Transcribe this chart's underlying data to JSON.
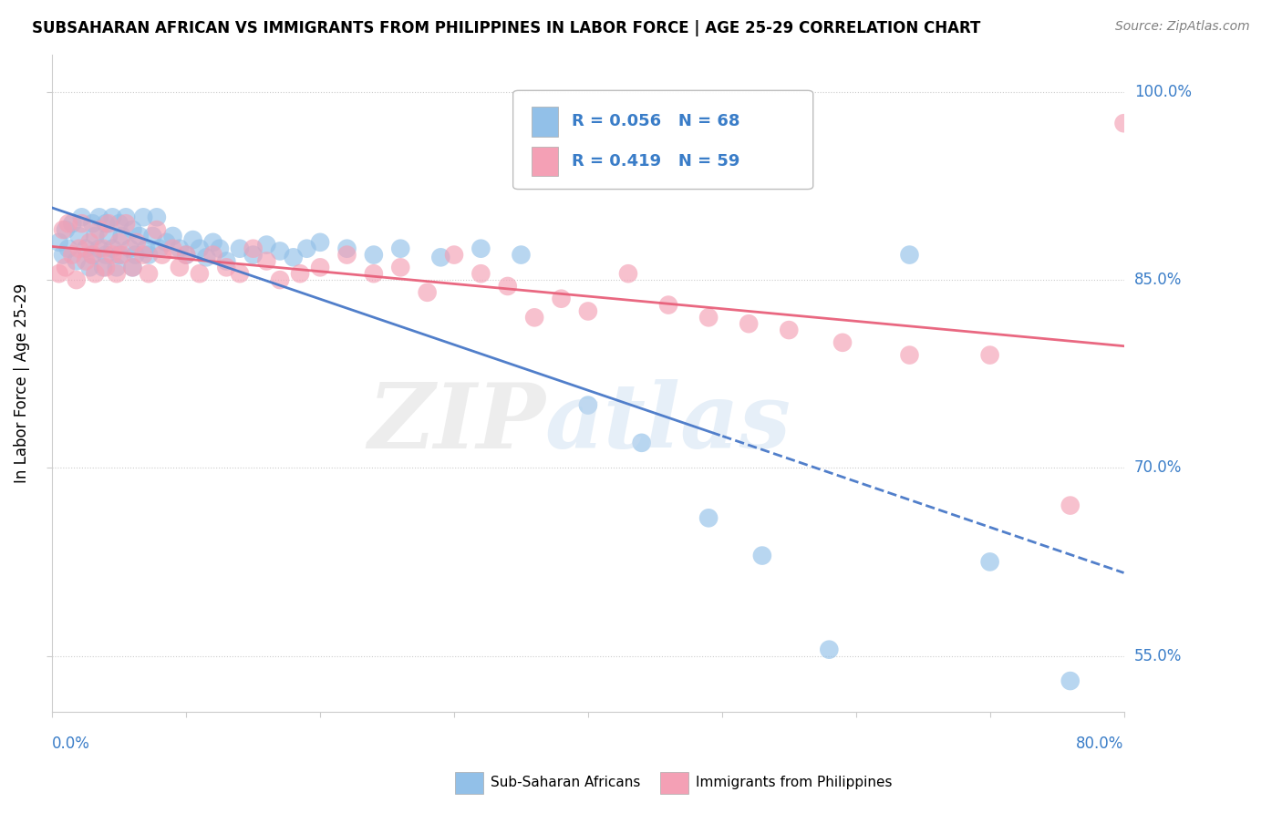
{
  "title": "SUBSAHARAN AFRICAN VS IMMIGRANTS FROM PHILIPPINES IN LABOR FORCE | AGE 25-29 CORRELATION CHART",
  "source": "Source: ZipAtlas.com",
  "ylabel": "In Labor Force | Age 25-29",
  "ytick_labels": [
    "55.0%",
    "70.0%",
    "85.0%",
    "100.0%"
  ],
  "ytick_values": [
    0.55,
    0.7,
    0.85,
    1.0
  ],
  "xlim": [
    0.0,
    0.8
  ],
  "ylim": [
    0.505,
    1.03
  ],
  "blue_color": "#92C0E8",
  "pink_color": "#F4A0B5",
  "blue_trend_color": "#4878C8",
  "pink_trend_color": "#E8607A",
  "label_color": "#3A7DC8",
  "blue_R": 0.056,
  "blue_N": 68,
  "pink_R": 0.419,
  "pink_N": 59,
  "blue_x": [
    0.005,
    0.008,
    0.01,
    0.012,
    0.015,
    0.018,
    0.02,
    0.022,
    0.025,
    0.028,
    0.03,
    0.03,
    0.032,
    0.035,
    0.035,
    0.038,
    0.04,
    0.04,
    0.042,
    0.045,
    0.045,
    0.048,
    0.05,
    0.05,
    0.052,
    0.055,
    0.058,
    0.06,
    0.06,
    0.062,
    0.065,
    0.068,
    0.07,
    0.072,
    0.075,
    0.078,
    0.08,
    0.085,
    0.09,
    0.095,
    0.1,
    0.105,
    0.11,
    0.115,
    0.12,
    0.125,
    0.13,
    0.14,
    0.15,
    0.16,
    0.17,
    0.18,
    0.19,
    0.2,
    0.22,
    0.24,
    0.26,
    0.29,
    0.32,
    0.35,
    0.4,
    0.44,
    0.49,
    0.53,
    0.58,
    0.64,
    0.7,
    0.76
  ],
  "blue_y": [
    0.88,
    0.87,
    0.89,
    0.875,
    0.895,
    0.865,
    0.885,
    0.9,
    0.875,
    0.86,
    0.895,
    0.87,
    0.885,
    0.9,
    0.875,
    0.86,
    0.895,
    0.87,
    0.885,
    0.9,
    0.875,
    0.86,
    0.895,
    0.87,
    0.885,
    0.9,
    0.875,
    0.86,
    0.89,
    0.87,
    0.885,
    0.9,
    0.875,
    0.87,
    0.885,
    0.9,
    0.875,
    0.88,
    0.885,
    0.875,
    0.87,
    0.882,
    0.875,
    0.868,
    0.88,
    0.875,
    0.865,
    0.875,
    0.87,
    0.878,
    0.873,
    0.868,
    0.875,
    0.88,
    0.875,
    0.87,
    0.875,
    0.868,
    0.875,
    0.87,
    0.75,
    0.72,
    0.66,
    0.63,
    0.555,
    0.87,
    0.625,
    0.53
  ],
  "pink_x": [
    0.005,
    0.008,
    0.01,
    0.012,
    0.015,
    0.018,
    0.02,
    0.022,
    0.025,
    0.028,
    0.03,
    0.032,
    0.035,
    0.038,
    0.04,
    0.042,
    0.045,
    0.048,
    0.05,
    0.052,
    0.055,
    0.06,
    0.063,
    0.068,
    0.072,
    0.078,
    0.082,
    0.09,
    0.095,
    0.1,
    0.11,
    0.12,
    0.13,
    0.14,
    0.15,
    0.16,
    0.17,
    0.185,
    0.2,
    0.22,
    0.24,
    0.26,
    0.28,
    0.3,
    0.32,
    0.34,
    0.36,
    0.38,
    0.4,
    0.43,
    0.46,
    0.49,
    0.52,
    0.55,
    0.59,
    0.64,
    0.7,
    0.76,
    0.8
  ],
  "pink_y": [
    0.855,
    0.89,
    0.86,
    0.895,
    0.87,
    0.85,
    0.875,
    0.895,
    0.865,
    0.88,
    0.87,
    0.855,
    0.89,
    0.875,
    0.86,
    0.895,
    0.87,
    0.855,
    0.88,
    0.87,
    0.895,
    0.86,
    0.88,
    0.87,
    0.855,
    0.89,
    0.87,
    0.875,
    0.86,
    0.87,
    0.855,
    0.87,
    0.86,
    0.855,
    0.875,
    0.865,
    0.85,
    0.855,
    0.86,
    0.87,
    0.855,
    0.86,
    0.84,
    0.87,
    0.855,
    0.845,
    0.82,
    0.835,
    0.825,
    0.855,
    0.83,
    0.82,
    0.815,
    0.81,
    0.8,
    0.79,
    0.79,
    0.67,
    0.975
  ]
}
